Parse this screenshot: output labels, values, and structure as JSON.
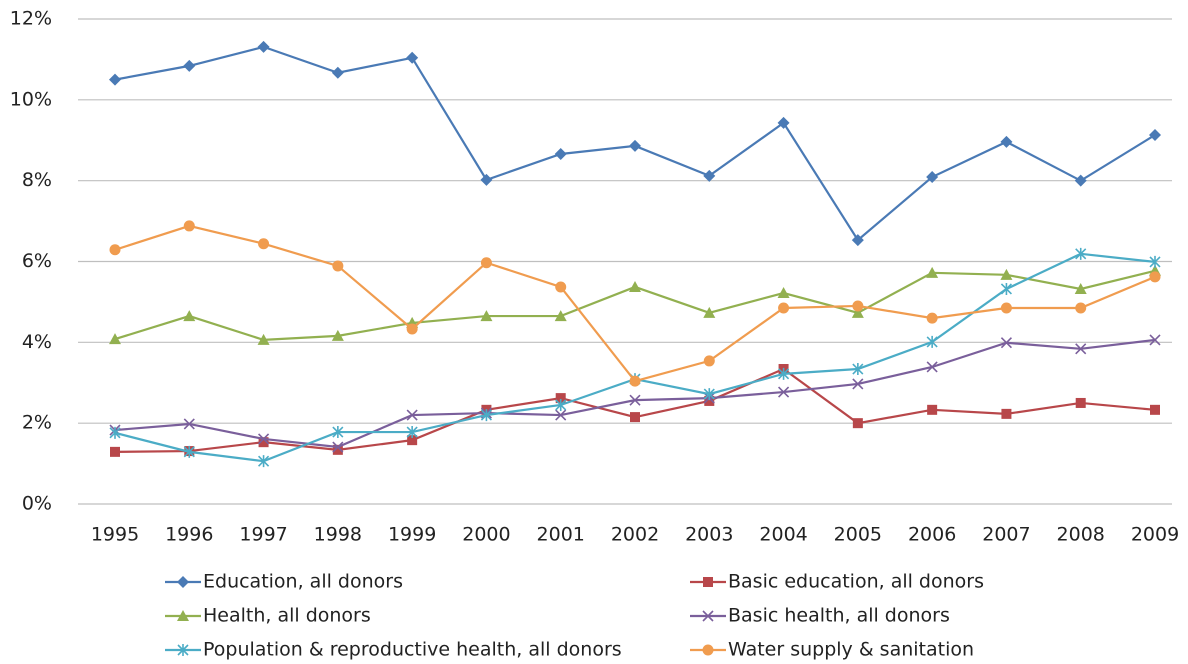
{
  "chart_data": {
    "type": "line",
    "categories": [
      "1995",
      "1996",
      "1997",
      "1998",
      "1999",
      "2000",
      "2001",
      "2002",
      "2003",
      "2004",
      "2005",
      "2006",
      "2007",
      "2008",
      "2009"
    ],
    "ylim": [
      0,
      12
    ],
    "yticks": [
      {
        "value": 0,
        "label": "0%"
      },
      {
        "value": 2,
        "label": "2%"
      },
      {
        "value": 4,
        "label": "4%"
      },
      {
        "value": 6,
        "label": "6%"
      },
      {
        "value": 8,
        "label": "8%"
      },
      {
        "value": 10,
        "label": "10%"
      },
      {
        "value": 12,
        "label": "12%"
      }
    ],
    "grid": true,
    "series": [
      {
        "name": "Education, all donors",
        "color": "#4a7ab5",
        "marker": "diamond",
        "values": [
          10.5,
          10.84,
          11.31,
          10.67,
          11.04,
          8.02,
          8.66,
          8.86,
          8.12,
          9.43,
          6.53,
          8.09,
          8.96,
          8.0,
          9.13
        ]
      },
      {
        "name": "Basic education, all donors",
        "color": "#b8474a",
        "marker": "square",
        "values": [
          1.29,
          1.31,
          1.53,
          1.34,
          1.58,
          2.33,
          2.62,
          2.15,
          2.55,
          3.34,
          2.0,
          2.33,
          2.23,
          2.5,
          2.33
        ]
      },
      {
        "name": "Health, all donors",
        "color": "#92b050",
        "marker": "triangle",
        "values": [
          4.08,
          4.65,
          4.06,
          4.16,
          4.48,
          4.65,
          4.65,
          5.37,
          4.73,
          5.22,
          4.73,
          5.72,
          5.67,
          5.32,
          5.77
        ]
      },
      {
        "name": "Basic health, all donors",
        "color": "#7a5f9b",
        "marker": "x",
        "values": [
          1.83,
          1.98,
          1.61,
          1.41,
          2.2,
          2.25,
          2.2,
          2.57,
          2.62,
          2.77,
          2.97,
          3.39,
          3.99,
          3.84,
          4.06
        ]
      },
      {
        "name": "Population & reproductive health, all donors",
        "color": "#4bacc6",
        "marker": "star",
        "values": [
          1.76,
          1.29,
          1.06,
          1.78,
          1.78,
          2.2,
          2.45,
          3.09,
          2.72,
          3.22,
          3.34,
          4.01,
          5.32,
          6.19,
          5.99
        ]
      },
      {
        "name": "Water supply & sanitation",
        "color": "#f09c4f",
        "marker": "circle",
        "values": [
          6.29,
          6.88,
          6.44,
          5.89,
          4.33,
          5.97,
          5.37,
          3.04,
          3.54,
          4.85,
          4.9,
          4.6,
          4.85,
          4.85,
          5.62
        ]
      }
    ]
  }
}
